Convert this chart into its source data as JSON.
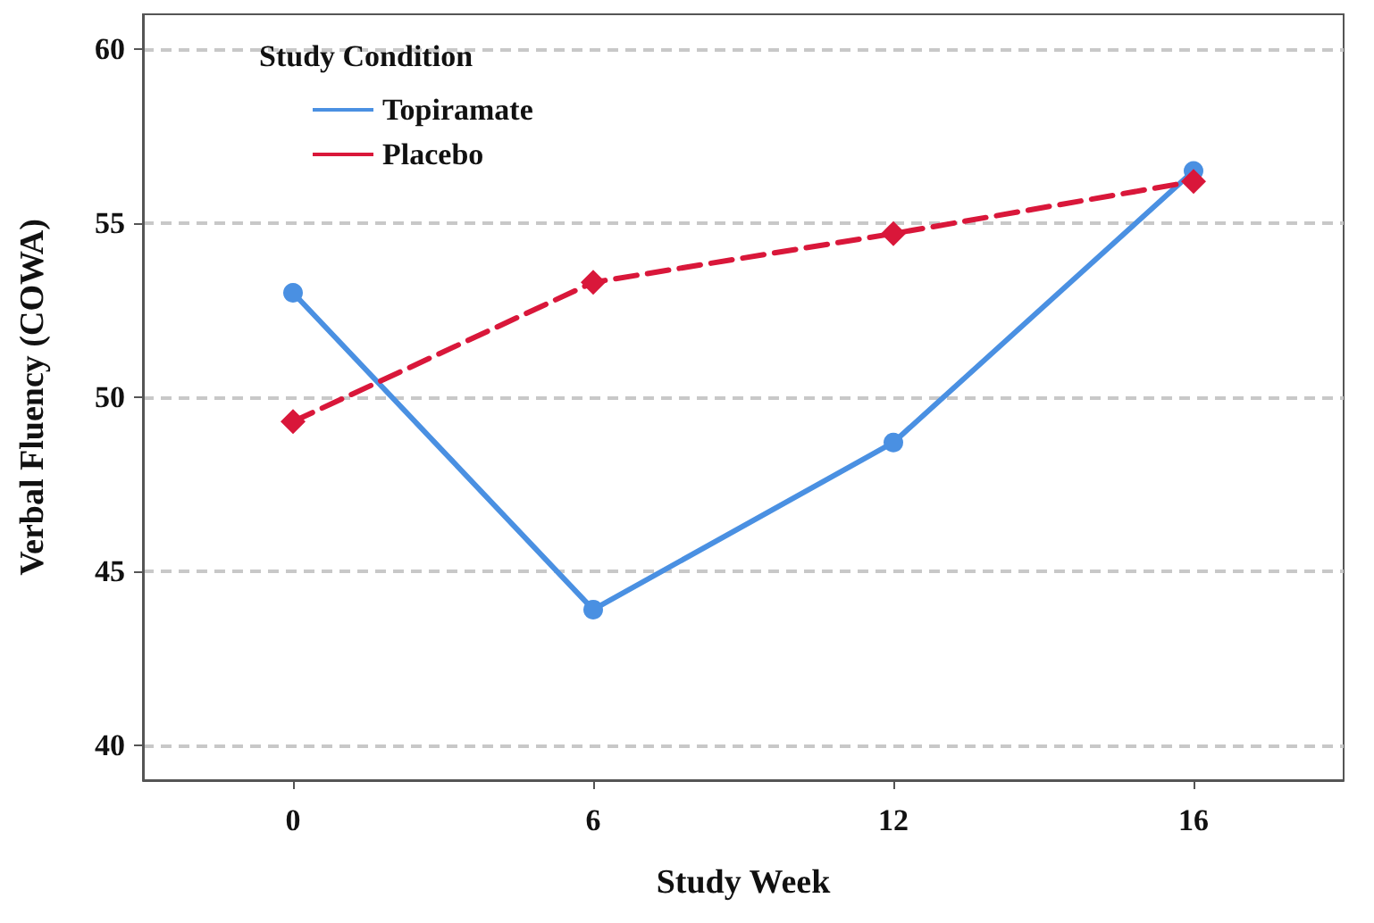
{
  "chart_data": {
    "type": "line",
    "xlabel": "Study Week",
    "ylabel": "Verbal Fluency (COWA)",
    "legend_title": "Study Condition",
    "categories": [
      "0",
      "6",
      "12",
      "16"
    ],
    "series": [
      {
        "name": "Topiramate",
        "color": "#4a90e2",
        "values": [
          53.0,
          43.9,
          48.7,
          56.5
        ],
        "marker": "circle",
        "line_style": "solid"
      },
      {
        "name": "Placebo",
        "color": "#d9173a",
        "values": [
          49.3,
          53.3,
          54.7,
          56.2
        ],
        "marker": "diamond",
        "line_style": "dashed"
      }
    ],
    "ylim": [
      39,
      61
    ],
    "yticks": [
      40,
      45,
      50,
      55,
      60
    ],
    "grid": "y",
    "legend": "top left"
  }
}
